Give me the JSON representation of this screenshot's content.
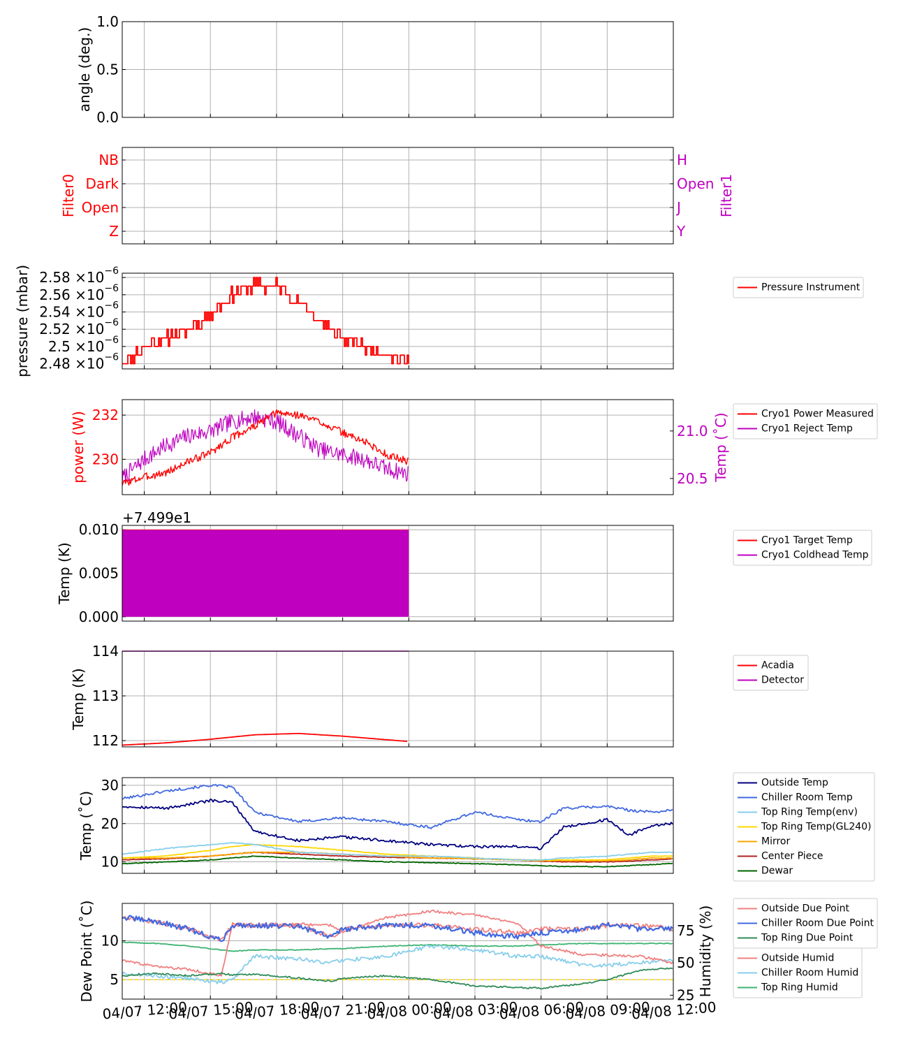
{
  "colors": {
    "red": "#ff0000",
    "magenta": "#bf00bf",
    "navy": "#000080",
    "royalblue": "#4169e1",
    "skyblue": "#87ceeb",
    "gold": "#ffd700",
    "orange": "#ffa500",
    "firebrick": "#b22222",
    "darkgreen": "#006400",
    "lightcoral": "#f08080",
    "seagreen": "#2e8b57",
    "medseagreen": "#3cb371",
    "grid": "#b0b0b0"
  },
  "x_ticks": [
    "04/07 12:00",
    "04/07 15:00",
    "04/07 18:00",
    "04/07 21:00",
    "04/08 00:00",
    "04/08 03:00",
    "04/08 06:00",
    "04/08 09:00",
    "04/08 12:00"
  ],
  "chart_data": [
    {
      "type": "line",
      "ylabel": "angle (deg.)",
      "ylim": [
        0,
        1
      ],
      "y_ticks": [
        "0.0",
        "0.5",
        "1.0"
      ],
      "series": []
    },
    {
      "type": "line",
      "ylabel": "Filter0",
      "ylabel_right": "Filter1",
      "y_ticks": [
        "Z",
        "Open",
        "Dark",
        "NB"
      ],
      "y_ticks_right": [
        "Y",
        "J",
        "Open",
        "H"
      ],
      "series": []
    },
    {
      "type": "line",
      "ylabel": "pressure (mbar)",
      "ylim": [
        2.474e-06,
        2.585e-06
      ],
      "y_ticks": [
        "2.48",
        "2.5",
        "2.52",
        "2.54",
        "2.56",
        "2.58"
      ],
      "tick_suffix": "×10",
      "tick_exp": "−6",
      "series": [
        {
          "name": "Pressure Instrument",
          "x": [
            "04/07 11:00",
            "04/07 12:00",
            "04/07 13:00",
            "04/07 14:00",
            "04/07 15:00",
            "04/07 16:00",
            "04/07 17:00",
            "04/07 18:00",
            "04/07 19:00",
            "04/07 20:00",
            "04/07 21:00",
            "04/07 22:00",
            "04/07 23:00",
            "04/08 00:00"
          ],
          "values": [
            2.48e-06,
            2.5e-06,
            2.51e-06,
            2.52e-06,
            2.54e-06,
            2.56e-06,
            2.57e-06,
            2.57e-06,
            2.55e-06,
            2.53e-06,
            2.51e-06,
            2.5e-06,
            2.49e-06,
            2.48e-06
          ]
        }
      ],
      "legend": "right"
    },
    {
      "type": "line",
      "ylabel": "power (W)",
      "ylabel_right": "Temp (˚C)",
      "ylim": [
        228.4,
        232.7
      ],
      "y_ticks": [
        "230",
        "232"
      ],
      "ylim_right": [
        20.33,
        21.33
      ],
      "y_ticks_right": [
        "20.5",
        "21.0"
      ],
      "series": [
        {
          "name": "Cryo1 Power Measured",
          "axis": "left",
          "x": [
            "04/07 11:00",
            "04/07 12:00",
            "04/07 13:00",
            "04/07 14:00",
            "04/07 15:00",
            "04/07 16:00",
            "04/07 17:00",
            "04/07 18:00",
            "04/07 19:00",
            "04/07 20:00",
            "04/07 21:00",
            "04/07 22:00",
            "04/07 23:00",
            "04/08 00:00"
          ],
          "values": [
            228.9,
            229.2,
            229.4,
            229.9,
            230.3,
            231.0,
            231.5,
            232.1,
            232.0,
            231.7,
            231.2,
            230.8,
            230.2,
            229.9
          ]
        },
        {
          "name": "Cryo1 Reject Temp",
          "axis": "right",
          "x": [
            "04/07 11:00",
            "04/07 12:00",
            "04/07 13:00",
            "04/07 14:00",
            "04/07 15:00",
            "04/07 16:00",
            "04/07 17:00",
            "04/07 18:00",
            "04/07 19:00",
            "04/07 20:00",
            "04/07 21:00",
            "04/07 22:00",
            "04/07 23:00",
            "04/08 00:00"
          ],
          "values": [
            20.5,
            20.7,
            20.85,
            20.95,
            21.0,
            21.1,
            21.15,
            21.1,
            20.95,
            20.8,
            20.75,
            20.7,
            20.6,
            20.55
          ]
        }
      ],
      "legend": "right"
    },
    {
      "type": "line",
      "ylabel": "Temp (K)",
      "offset_text": "+7.499e1",
      "ylim": [
        -0.0005,
        0.0105
      ],
      "y_ticks": [
        "0.000",
        "0.005",
        "0.010"
      ],
      "series": [
        {
          "name": "Cryo1 Target Temp",
          "x": [
            "04/07 11:00",
            "04/08 00:00"
          ],
          "values": [
            0.01,
            0.01
          ]
        },
        {
          "name": "Cryo1 Coldhead Temp",
          "x": [
            "04/07 11:00",
            "04/08 00:00"
          ],
          "values_range": [
            0.0,
            0.01
          ]
        }
      ],
      "legend": "right"
    },
    {
      "type": "line",
      "ylabel": "Temp (K)",
      "ylim": [
        111.86,
        114.0
      ],
      "y_ticks": [
        "112",
        "113",
        "114"
      ],
      "series": [
        {
          "name": "Acadia",
          "x": [
            "04/07 11:00",
            "04/07 13:00",
            "04/07 15:00",
            "04/07 17:00",
            "04/07 19:00",
            "04/07 21:00",
            "04/07 23:00",
            "04/08 00:00"
          ],
          "values": [
            111.9,
            111.95,
            112.03,
            112.13,
            112.16,
            112.1,
            112.02,
            111.98
          ]
        },
        {
          "name": "Detector",
          "x": [
            "04/07 11:00",
            "04/08 00:00"
          ],
          "values": [
            114.0,
            114.0
          ]
        }
      ],
      "legend": "right"
    },
    {
      "type": "line",
      "ylabel": "Temp (˚C)",
      "ylim": [
        7.0,
        32.0
      ],
      "y_ticks": [
        "10",
        "20",
        "30"
      ],
      "x": [
        "04/07 11:00",
        "04/07 13:00",
        "04/07 15:00",
        "04/07 16:00",
        "04/07 17:00",
        "04/07 19:00",
        "04/07 21:00",
        "04/07 23:00",
        "04/08 01:00",
        "04/08 03:00",
        "04/08 05:00",
        "04/08 06:00",
        "04/08 07:00",
        "04/08 09:00",
        "04/08 10:00",
        "04/08 11:00",
        "04/08 12:00"
      ],
      "series": [
        {
          "name": "Outside Temp",
          "values": [
            24.5,
            24.0,
            26.0,
            25.5,
            18.0,
            15.5,
            16.5,
            15.5,
            14.5,
            14.0,
            14.0,
            13.5,
            19.0,
            21.0,
            17.0,
            19.5,
            20.0
          ]
        },
        {
          "name": "Chiller Room Temp",
          "values": [
            26.5,
            28.5,
            30.0,
            29.5,
            23.0,
            20.5,
            21.5,
            20.5,
            19.0,
            23.0,
            21.0,
            20.5,
            24.0,
            24.5,
            23.5,
            23.0,
            23.5
          ]
        },
        {
          "name": "Top Ring Temp(env)",
          "values": [
            12.0,
            13.5,
            14.5,
            15.0,
            14.5,
            12.5,
            12.0,
            11.5,
            11.5,
            11.0,
            10.5,
            10.5,
            11.0,
            11.5,
            12.0,
            12.5,
            12.5
          ]
        },
        {
          "name": "Top Ring Temp(GL240)",
          "values": [
            11.0,
            11.5,
            13.0,
            14.0,
            14.5,
            14.0,
            13.0,
            12.0,
            11.5,
            11.0,
            10.5,
            10.5,
            10.5,
            10.5,
            11.0,
            11.5,
            11.5
          ]
        },
        {
          "name": "Mirror",
          "values": [
            11.0,
            11.0,
            11.5,
            12.0,
            12.5,
            12.5,
            12.0,
            11.5,
            11.0,
            10.8,
            10.5,
            10.3,
            10.3,
            10.3,
            10.5,
            11.0,
            11.0
          ]
        },
        {
          "name": "Center Piece",
          "values": [
            10.5,
            10.8,
            11.5,
            12.0,
            12.5,
            12.0,
            11.5,
            11.2,
            11.0,
            10.8,
            10.5,
            10.2,
            10.0,
            10.0,
            10.2,
            10.5,
            10.8
          ]
        },
        {
          "name": "Dewar",
          "values": [
            9.5,
            10.0,
            10.5,
            11.0,
            11.5,
            11.0,
            10.5,
            10.0,
            9.8,
            9.5,
            9.2,
            9.0,
            8.8,
            8.7,
            9.0,
            9.3,
            9.6
          ]
        }
      ],
      "legend": "right"
    },
    {
      "type": "line",
      "ylabel": "Dew Point (˚C)",
      "ylabel_right": "Humidity (%)",
      "ylim": [
        2.5,
        14.8
      ],
      "y_ticks": [
        "5",
        "10"
      ],
      "ylim_right": [
        22.0,
        96.0
      ],
      "y_ticks_right": [
        "25",
        "50",
        "75"
      ],
      "x": [
        "04/07 11:00",
        "04/07 12:30",
        "04/07 14:00",
        "04/07 15:30",
        "04/07 16:00",
        "04/07 17:00",
        "04/07 19:00",
        "04/07 20:30",
        "04/07 21:00",
        "04/07 23:00",
        "04/08 01:00",
        "04/08 03:00",
        "04/08 05:00",
        "04/08 06:00",
        "04/08 08:00",
        "04/08 09:00",
        "04/08 10:30",
        "04/08 12:00"
      ],
      "series": [
        {
          "name": "Outside Due Point",
          "axis": "left",
          "values": [
            13.0,
            12.5,
            11.5,
            10.0,
            12.0,
            12.0,
            12.0,
            10.5,
            11.5,
            12.0,
            12.0,
            11.5,
            11.0,
            11.5,
            11.5,
            12.0,
            12.0,
            11.5
          ]
        },
        {
          "name": "Chiller Room Due Point",
          "axis": "left",
          "values": [
            13.0,
            12.5,
            11.5,
            10.0,
            12.0,
            12.0,
            11.8,
            10.5,
            11.5,
            12.0,
            12.0,
            11.0,
            10.5,
            11.0,
            11.5,
            12.0,
            11.5,
            11.5
          ]
        },
        {
          "name": "Top Ring Due Point",
          "axis": "left",
          "values": [
            5.5,
            5.8,
            5.5,
            5.8,
            5.6,
            5.7,
            5.2,
            4.8,
            5.2,
            5.5,
            5.0,
            4.2,
            4.0,
            3.9,
            4.5,
            5.0,
            6.2,
            6.5
          ]
        },
        {
          "name": "Outside Humid",
          "axis": "right",
          "values": [
            52,
            47,
            45,
            40,
            80,
            78,
            80,
            79,
            74,
            85,
            90,
            87,
            80,
            63,
            56,
            56,
            55,
            50
          ]
        },
        {
          "name": "Chiller Room Humid",
          "axis": "right",
          "values": [
            42,
            40,
            38,
            35,
            37,
            55,
            53,
            50,
            52,
            55,
            63,
            60,
            55,
            55,
            48,
            48,
            50,
            52
          ]
        },
        {
          "name": "Top Ring Humid",
          "axis": "right",
          "values": [
            66,
            65,
            63,
            60,
            59,
            60,
            60,
            61,
            61,
            63,
            64,
            63,
            63,
            64,
            65,
            65,
            65,
            65
          ]
        }
      ],
      "legend": "right"
    }
  ]
}
